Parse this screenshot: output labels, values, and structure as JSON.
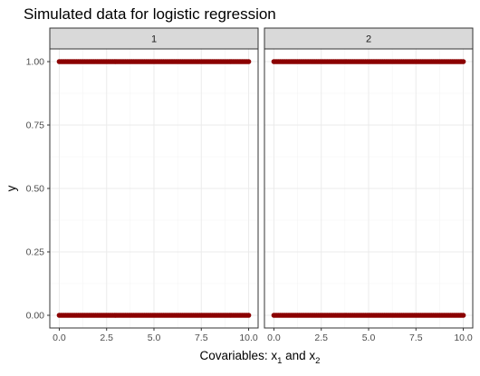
{
  "chart_data": {
    "type": "scatter",
    "title": "Simulated data for logistic regression",
    "xlabel": "Covariables: x",
    "xlabel_sub1": "1",
    "xlabel_mid": " and x",
    "xlabel_sub2": "2",
    "ylabel": "y",
    "xlim": [
      -0.5,
      10.5
    ],
    "ylim": [
      -0.05,
      1.05
    ],
    "x_ticks": [
      0,
      2.5,
      5,
      7.5,
      10
    ],
    "x_tick_labels": [
      "0.0",
      "2.5",
      "5.0",
      "7.5",
      "10.0"
    ],
    "y_ticks": [
      0,
      0.25,
      0.5,
      0.75,
      1
    ],
    "y_tick_labels": [
      "0.00",
      "0.25",
      "0.50",
      "0.75",
      "1.00"
    ],
    "point_color": "#8b0000",
    "facets": [
      {
        "label": "1",
        "y_values": [
          1,
          0
        ],
        "x_range": [
          0,
          10
        ]
      },
      {
        "label": "2",
        "y_values": [
          1,
          0
        ],
        "x_range": [
          0,
          10
        ]
      }
    ]
  }
}
